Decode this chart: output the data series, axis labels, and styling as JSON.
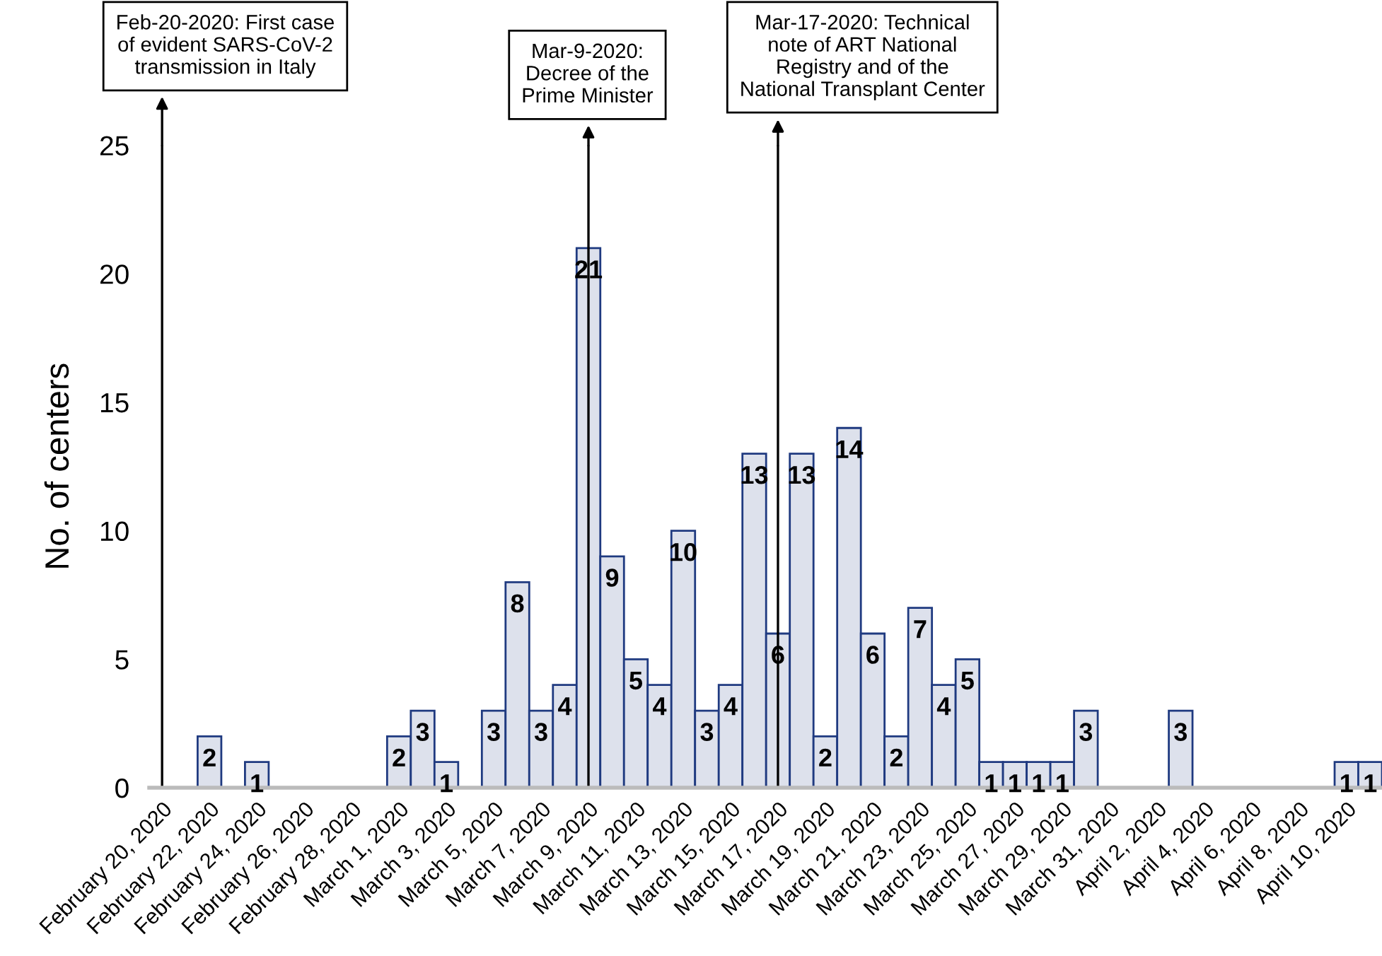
{
  "chart_data": {
    "type": "bar",
    "ylabel": "No. of centers",
    "x": [
      "2020-02-22",
      "2020-02-24",
      "2020-03-01",
      "2020-03-02",
      "2020-03-03",
      "2020-03-05",
      "2020-03-06",
      "2020-03-07",
      "2020-03-08",
      "2020-03-09",
      "2020-03-10",
      "2020-03-11",
      "2020-03-12",
      "2020-03-13",
      "2020-03-14",
      "2020-03-15",
      "2020-03-16",
      "2020-03-17",
      "2020-03-18",
      "2020-03-19",
      "2020-03-20",
      "2020-03-21",
      "2020-03-22",
      "2020-03-23",
      "2020-03-24",
      "2020-03-25",
      "2020-03-26",
      "2020-03-27",
      "2020-03-28",
      "2020-03-29",
      "2020-03-30",
      "2020-04-03",
      "2020-04-10",
      "2020-04-11"
    ],
    "values": [
      2,
      1,
      2,
      3,
      1,
      3,
      8,
      3,
      4,
      21,
      9,
      5,
      4,
      10,
      3,
      4,
      13,
      6,
      13,
      2,
      14,
      6,
      2,
      7,
      4,
      5,
      1,
      1,
      1,
      1,
      3,
      3,
      1,
      1
    ],
    "color": "#dde1ec",
    "data_labels": true,
    "ylim": [
      0,
      25
    ],
    "yticks": [
      0,
      5,
      10,
      15,
      20,
      25
    ],
    "xlim": [
      "2020-02-19T11:00",
      "2020-04-11T12:00"
    ],
    "xticks": [
      {
        "value": "2020-02-20",
        "label": "February 20, 2020"
      },
      {
        "value": "2020-02-22",
        "label": "February 22, 2020"
      },
      {
        "value": "2020-02-24",
        "label": "February 24, 2020"
      },
      {
        "value": "2020-02-26",
        "label": "February 26, 2020"
      },
      {
        "value": "2020-02-28",
        "label": "February 28, 2020"
      },
      {
        "value": "2020-03-01",
        "label": "March 1, 2020"
      },
      {
        "value": "2020-03-03",
        "label": "March 3, 2020"
      },
      {
        "value": "2020-03-05",
        "label": "March 5, 2020"
      },
      {
        "value": "2020-03-07",
        "label": "March 7, 2020"
      },
      {
        "value": "2020-03-09",
        "label": "March 9, 2020"
      },
      {
        "value": "2020-03-11",
        "label": "March 11, 2020"
      },
      {
        "value": "2020-03-13",
        "label": "March 13, 2020"
      },
      {
        "value": "2020-03-15",
        "label": "March 15, 2020"
      },
      {
        "value": "2020-03-17",
        "label": "March 17, 2020"
      },
      {
        "value": "2020-03-19",
        "label": "March 19, 2020"
      },
      {
        "value": "2020-03-21",
        "label": "March 21, 2020"
      },
      {
        "value": "2020-03-23",
        "label": "March 23, 2020"
      },
      {
        "value": "2020-03-25",
        "label": "March 25, 2020"
      },
      {
        "value": "2020-03-27",
        "label": "March 27, 2020"
      },
      {
        "value": "2020-03-29",
        "label": "March 29, 2020"
      },
      {
        "value": "2020-03-31",
        "label": "March 31, 2020"
      },
      {
        "value": "2020-04-02",
        "label": "April 2, 2020"
      },
      {
        "value": "2020-04-04",
        "label": "April 4, 2020"
      },
      {
        "value": "2020-04-06",
        "label": "April 6, 2020"
      },
      {
        "value": "2020-04-08",
        "label": "April 8, 2020"
      },
      {
        "value": "2020-04-10",
        "label": "April 10, 2020"
      }
    ],
    "grid": false,
    "ref_lines": [
      {
        "axis": "x",
        "value": "2020-02-20",
        "label": "Feb-20-2020: First case\nof evident SARS-CoV-2\ntransmission in Italy"
      },
      {
        "axis": "x",
        "value": "2020-03-09",
        "label": "Mar-9-2020:\nDecree of the\nPrime Minister"
      },
      {
        "axis": "x",
        "value": "2020-03-17",
        "label": "Mar-17-2020: Technical\nnote of ART National\nRegistry and of the\nNational Transplant Center"
      }
    ]
  }
}
